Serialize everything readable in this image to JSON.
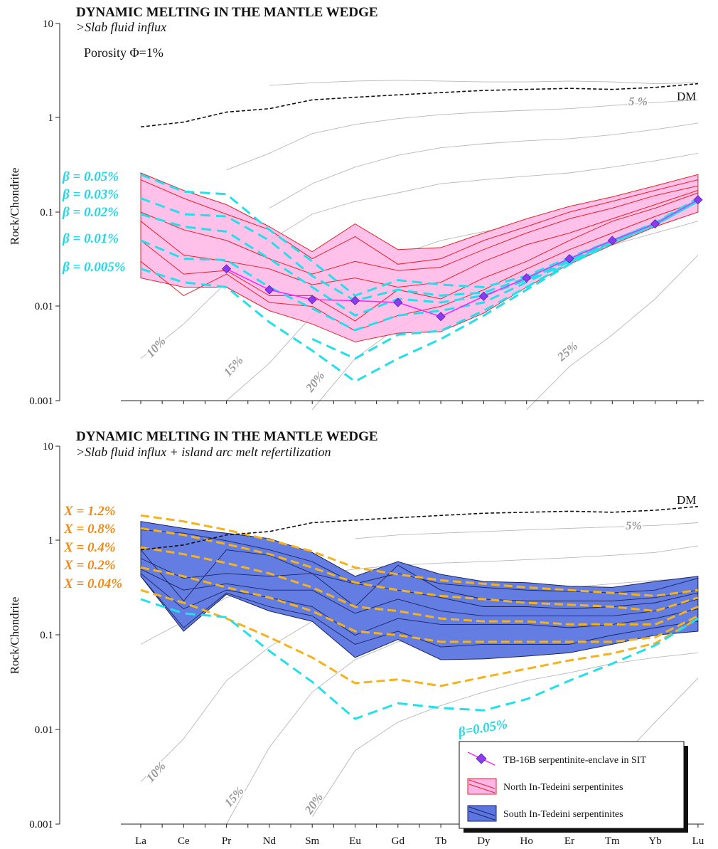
{
  "chart_data": [
    {
      "type": "line",
      "title": "DYNAMIC MELTING IN THE MANTLE WEDGE",
      "subtitle": ">Slab fluid influx",
      "annotation": "Porosity Φ=1%",
      "ylabel": "Rock/Chondrite",
      "yscale": "log",
      "ylim": [
        0.001,
        10
      ],
      "yticks": [
        "0.001",
        "0.01",
        "0.1",
        "1",
        "10"
      ],
      "categories": [
        "La",
        "Ce",
        "Pr",
        "Nd",
        "Sm",
        "Eu",
        "Gd",
        "Tb",
        "Dy",
        "Ho",
        "Er",
        "Tm",
        "Yb",
        "Lu"
      ],
      "dm": {
        "label": "DM",
        "values": [
          0.8,
          0.9,
          1.15,
          1.25,
          1.55,
          1.65,
          1.75,
          1.85,
          1.95,
          2.0,
          2.05,
          2.0,
          2.1,
          2.3
        ]
      },
      "melt_curves": [
        {
          "label": "",
          "values": [
            null,
            null,
            null,
            2.2,
            2.35,
            2.45,
            2.5,
            2.45,
            2.4,
            2.4,
            2.45,
            2.4,
            2.3,
            2.35
          ]
        },
        {
          "label": "5 %",
          "values": [
            null,
            null,
            0.28,
            0.42,
            0.68,
            0.85,
            0.98,
            1.08,
            1.15,
            1.2,
            1.25,
            1.35,
            1.45,
            1.55
          ]
        },
        {
          "label": "",
          "values": [
            null,
            null,
            null,
            0.11,
            0.2,
            0.3,
            0.4,
            0.48,
            0.53,
            0.57,
            0.6,
            0.66,
            0.75,
            0.88
          ]
        },
        {
          "label": "10%",
          "values": [
            0.0028,
            0.0065,
            0.018,
            0.05,
            0.095,
            0.13,
            0.16,
            0.2,
            0.22,
            0.24,
            0.26,
            0.3,
            0.35,
            0.42
          ]
        },
        {
          "label": "15%",
          "values": [
            null,
            null,
            0.001,
            0.0025,
            0.008,
            0.02,
            0.035,
            0.05,
            0.062,
            0.075,
            0.09,
            0.11,
            0.14,
            0.17
          ]
        },
        {
          "label": "20%",
          "values": [
            null,
            null,
            null,
            null,
            0.0008,
            0.0028,
            0.006,
            0.01,
            0.015,
            0.022,
            0.03,
            0.045,
            0.06,
            0.08
          ]
        },
        {
          "label": "25%",
          "values": [
            null,
            null,
            null,
            null,
            null,
            null,
            null,
            null,
            null,
            0.0008,
            0.0023,
            0.005,
            0.012,
            0.035
          ]
        }
      ],
      "envelope": {
        "name": "North In-Tedeini serpentinites",
        "color": "#ffb6e6",
        "edge": "#e8222a",
        "upper": [
          0.26,
          0.17,
          0.12,
          0.07,
          0.038,
          0.075,
          0.04,
          0.042,
          0.06,
          0.085,
          0.115,
          0.145,
          0.19,
          0.25
        ],
        "lower": [
          0.02,
          0.016,
          0.016,
          0.009,
          0.0065,
          0.0042,
          0.0052,
          0.0054,
          0.0085,
          0.016,
          0.028,
          0.045,
          0.07,
          0.1
        ]
      },
      "sample_lines": [
        [
          0.22,
          0.14,
          0.095,
          0.065,
          0.032,
          0.055,
          0.028,
          0.032,
          0.05,
          0.07,
          0.1,
          0.13,
          0.17,
          0.22
        ],
        [
          0.1,
          0.065,
          0.05,
          0.032,
          0.022,
          0.03,
          0.024,
          0.026,
          0.04,
          0.06,
          0.085,
          0.11,
          0.15,
          0.19
        ],
        [
          0.08,
          0.035,
          0.03,
          0.025,
          0.017,
          0.02,
          0.016,
          0.018,
          0.03,
          0.045,
          0.06,
          0.085,
          0.12,
          0.17
        ],
        [
          0.05,
          0.022,
          0.024,
          0.013,
          0.013,
          0.007,
          0.015,
          0.012,
          0.02,
          0.03,
          0.05,
          0.08,
          0.11,
          0.16
        ],
        [
          0.03,
          0.013,
          0.022,
          0.011,
          0.01,
          0.0055,
          0.008,
          0.01,
          0.015,
          0.025,
          0.04,
          0.06,
          0.09,
          0.13
        ]
      ],
      "tb16b": {
        "name": "TB-16B serpentinite-enclave in SIT",
        "start": 2,
        "values": [
          0.025,
          0.015,
          0.0118,
          0.0115,
          0.011,
          0.0078,
          0.0128,
          0.02,
          0.032,
          0.05,
          0.075,
          0.135
        ]
      },
      "beta_curves": [
        {
          "label": "β = 0.05%",
          "values": [
            0.25,
            0.165,
            0.155,
            0.065,
            0.03,
            0.013,
            0.019,
            0.017,
            0.016,
            0.021,
            0.033,
            0.05,
            0.077,
            0.14
          ]
        },
        {
          "label": "β = 0.03%",
          "values": [
            0.14,
            0.095,
            0.09,
            0.05,
            0.021,
            0.0115,
            0.015,
            0.013,
            0.014,
            0.02,
            0.032,
            0.05,
            0.076,
            0.135
          ]
        },
        {
          "label": "β = 0.02%",
          "values": [
            0.095,
            0.07,
            0.062,
            0.032,
            0.016,
            0.008,
            0.012,
            0.011,
            0.013,
            0.019,
            0.031,
            0.049,
            0.075,
            0.13
          ]
        },
        {
          "label": "β = 0.01%",
          "values": [
            0.05,
            0.032,
            0.031,
            0.016,
            0.0095,
            0.0056,
            0.008,
            0.009,
            0.011,
            0.018,
            0.03,
            0.048,
            0.074,
            0.13
          ]
        },
        {
          "label": "β = 0.005%",
          "values": [
            0.025,
            0.018,
            0.016,
            0.0068,
            0.0034,
            0.0016,
            0.0028,
            0.0045,
            0.008,
            0.015,
            0.028,
            0.047,
            0.073,
            0.13
          ]
        },
        {
          "label": "",
          "values": [
            null,
            null,
            null,
            null,
            0.0045,
            0.0028,
            0.005,
            0.0055,
            0.009,
            0.016,
            0.029,
            0.047,
            0.073,
            0.13
          ]
        }
      ]
    },
    {
      "type": "line",
      "title": "DYNAMIC MELTING IN THE MANTLE WEDGE",
      "subtitle": ">Slab fluid influx + island arc melt refertilization",
      "ylabel": "Rock/Chondrite",
      "yscale": "log",
      "ylim": [
        0.001,
        10
      ],
      "yticks": [
        "0.001",
        "0.01",
        "0.1",
        "1",
        "10"
      ],
      "categories": [
        "La",
        "Ce",
        "Pr",
        "Nd",
        "Sm",
        "Eu",
        "Gd",
        "Tb",
        "Dy",
        "Ho",
        "Er",
        "Tm",
        "Yb",
        "Lu"
      ],
      "dm": {
        "label": "DM",
        "values": [
          0.8,
          0.9,
          1.15,
          1.25,
          1.55,
          1.65,
          1.75,
          1.85,
          1.95,
          2.0,
          2.05,
          2.0,
          2.1,
          2.3
        ]
      },
      "melt_curves": [
        {
          "label": "5%",
          "values": [
            null,
            null,
            null,
            null,
            null,
            1.05,
            1.15,
            1.2,
            1.25,
            1.3,
            1.35,
            1.4,
            1.45,
            1.55
          ]
        },
        {
          "label": "",
          "values": [
            0.08,
            0.14,
            0.25,
            0.33,
            0.43,
            0.5,
            0.55,
            0.58,
            0.6,
            0.63,
            0.66,
            0.7,
            0.75,
            0.88
          ]
        },
        {
          "label": "10%",
          "values": [
            0.0028,
            0.008,
            0.033,
            0.075,
            0.14,
            0.2,
            0.23,
            0.26,
            0.28,
            0.3,
            0.32,
            0.35,
            0.38,
            0.4
          ]
        },
        {
          "label": "15%",
          "values": [
            null,
            null,
            0.001,
            0.0065,
            0.025,
            0.055,
            0.085,
            0.1,
            0.12,
            0.14,
            0.155,
            0.17,
            0.19,
            0.21
          ]
        },
        {
          "label": "20%",
          "values": [
            null,
            null,
            null,
            null,
            0.0012,
            0.006,
            0.012,
            0.018,
            0.025,
            0.033,
            0.04,
            0.05,
            0.058,
            0.065
          ]
        },
        {
          "label": "",
          "values": [
            null,
            null,
            null,
            null,
            null,
            null,
            null,
            null,
            null,
            null,
            0.0012,
            0.004,
            0.012,
            0.035
          ]
        }
      ],
      "envelope": {
        "name": "South In-Tedeini serpentinites",
        "color": "#5b76e0",
        "edge": "#1a2360",
        "upper": [
          1.6,
          1.35,
          1.2,
          1.05,
          0.75,
          0.42,
          0.6,
          0.44,
          0.37,
          0.36,
          0.33,
          0.32,
          0.37,
          0.42
        ],
        "lower": [
          0.42,
          0.11,
          0.27,
          0.18,
          0.14,
          0.058,
          0.09,
          0.055,
          0.056,
          0.06,
          0.065,
          0.08,
          0.1,
          0.11
        ]
      },
      "sample_lines": [
        [
          1.3,
          1.2,
          1.0,
          0.8,
          0.6,
          0.35,
          0.45,
          0.35,
          0.32,
          0.3,
          0.29,
          0.28,
          0.3,
          0.4
        ],
        [
          0.8,
          0.23,
          0.8,
          0.7,
          0.45,
          0.2,
          0.55,
          0.3,
          0.24,
          0.23,
          0.23,
          0.23,
          0.25,
          0.3
        ],
        [
          0.65,
          0.4,
          0.45,
          0.42,
          0.45,
          0.35,
          0.3,
          0.25,
          0.2,
          0.2,
          0.19,
          0.2,
          0.22,
          0.28
        ],
        [
          0.5,
          0.3,
          0.35,
          0.3,
          0.3,
          0.17,
          0.24,
          0.18,
          0.16,
          0.16,
          0.16,
          0.16,
          0.18,
          0.24
        ],
        [
          0.45,
          0.19,
          0.3,
          0.25,
          0.2,
          0.1,
          0.15,
          0.13,
          0.13,
          0.13,
          0.12,
          0.13,
          0.15,
          0.19
        ],
        [
          0.42,
          0.12,
          0.28,
          0.2,
          0.16,
          0.08,
          0.11,
          0.075,
          0.08,
          0.08,
          0.08,
          0.1,
          0.12,
          0.14
        ]
      ],
      "x_curves": [
        {
          "label": "X = 1.2%",
          "values": [
            1.85,
            1.6,
            1.3,
            1.02,
            0.77,
            0.52,
            0.44,
            0.38,
            0.35,
            0.32,
            0.3,
            0.28,
            0.26,
            0.3
          ]
        },
        {
          "label": "X = 0.8%",
          "values": [
            1.35,
            1.15,
            0.92,
            0.72,
            0.52,
            0.36,
            0.3,
            0.26,
            0.24,
            0.22,
            0.21,
            0.2,
            0.18,
            0.25
          ]
        },
        {
          "label": "X = 0.4%",
          "values": [
            0.85,
            0.72,
            0.58,
            0.45,
            0.32,
            0.2,
            0.18,
            0.15,
            0.14,
            0.14,
            0.13,
            0.13,
            0.13,
            0.2
          ]
        },
        {
          "label": "X = 0.2%",
          "values": [
            0.52,
            0.42,
            0.32,
            0.25,
            0.18,
            0.11,
            0.1,
            0.085,
            0.085,
            0.085,
            0.085,
            0.085,
            0.095,
            0.16
          ]
        },
        {
          "label": "X = 0.04%",
          "values": [
            0.3,
            0.22,
            0.15,
            0.095,
            0.058,
            0.031,
            0.034,
            0.029,
            0.036,
            0.044,
            0.054,
            0.064,
            0.082,
            0.15
          ]
        }
      ],
      "beta_curve": {
        "label": "β=0.05%",
        "values": [
          0.24,
          0.17,
          0.155,
          0.068,
          0.032,
          0.013,
          0.019,
          0.017,
          0.016,
          0.021,
          0.033,
          0.05,
          0.078,
          0.15
        ]
      },
      "legend": {
        "position": "bottom-right",
        "items": [
          {
            "label": "TB-16B serpentinite-enclave in SIT",
            "kind": "sample"
          },
          {
            "label": "North In-Tedeini serpentinites",
            "kind": "north"
          },
          {
            "label": "South In-Tedeini serpentinites",
            "kind": "south"
          }
        ]
      }
    }
  ]
}
